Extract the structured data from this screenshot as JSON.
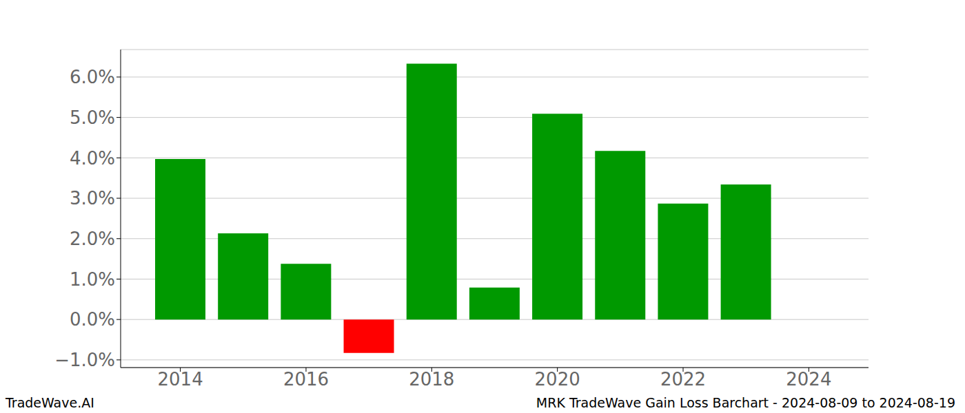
{
  "chart_data": {
    "type": "bar",
    "x": [
      2014,
      2015,
      2016,
      2017,
      2018,
      2019,
      2020,
      2021,
      2022,
      2023
    ],
    "values": [
      3.97,
      2.13,
      1.38,
      -0.83,
      6.33,
      0.79,
      5.09,
      4.17,
      2.87,
      3.34
    ],
    "colors": [
      "#009900",
      "#009900",
      "#009900",
      "#ff0000",
      "#009900",
      "#009900",
      "#009900",
      "#009900",
      "#009900",
      "#009900"
    ],
    "xlim": [
      2013.05,
      2024.95
    ],
    "xticks": [
      2014,
      2016,
      2018,
      2020,
      2022,
      2024
    ],
    "ylim": [
      -1.19,
      6.68
    ],
    "yticks": [
      {
        "value": -1,
        "label": "−1.0%"
      },
      {
        "value": 0,
        "label": "0.0%"
      },
      {
        "value": 1,
        "label": "1.0%"
      },
      {
        "value": 2,
        "label": "2.0%"
      },
      {
        "value": 3,
        "label": "3.0%"
      },
      {
        "value": 4,
        "label": "4.0%"
      },
      {
        "value": 5,
        "label": "5.0%"
      },
      {
        "value": 6,
        "label": "6.0%"
      }
    ],
    "grid": true,
    "annotations": [
      "TradeWave.AI",
      "MRK TradeWave Gain Loss Barchart - 2024-08-09 to 2024-08-19"
    ]
  }
}
